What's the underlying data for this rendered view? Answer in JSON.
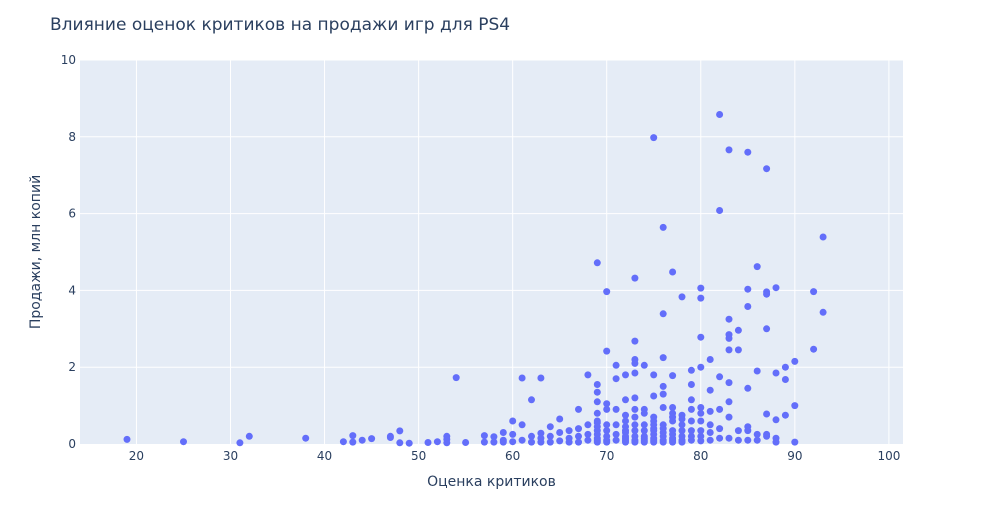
{
  "chart_data": {
    "type": "scatter",
    "title": "Влияние оценок критиков на продажи игр для PS4",
    "xlabel": "Оценка критиков",
    "ylabel": "Продажи, млн копий",
    "xlim": [
      14,
      101.5
    ],
    "ylim": [
      0,
      10
    ],
    "x_ticks": [
      "20",
      "30",
      "40",
      "50",
      "60",
      "70",
      "80",
      "90",
      "100"
    ],
    "y_ticks": [
      "0",
      "2",
      "4",
      "6",
      "8",
      "10"
    ],
    "grid": true,
    "legend": "none",
    "colors": {
      "marker": "#636efa",
      "plot_bg": "#e5ecf6",
      "grid": "#ffffff",
      "text": "#2a3f5f"
    },
    "series": [
      {
        "x": [
          19,
          25,
          31,
          32,
          38,
          42,
          43,
          43,
          44,
          45,
          47,
          47,
          48,
          48,
          49,
          51,
          52,
          53,
          53,
          53,
          54,
          55,
          57,
          57,
          58,
          58,
          59,
          59,
          59,
          60,
          60,
          60,
          61,
          61,
          61,
          62,
          62,
          62,
          63,
          63,
          63,
          63,
          64,
          64,
          64,
          65,
          65,
          65,
          66,
          66,
          66,
          67,
          67,
          67,
          67,
          68,
          68,
          68,
          68,
          69,
          69,
          69,
          69,
          69,
          69,
          69,
          69,
          69,
          69,
          69,
          69,
          69,
          70,
          70,
          70,
          70,
          70,
          70,
          70,
          70,
          70,
          71,
          71,
          71,
          71,
          71,
          71,
          72,
          72,
          72,
          72,
          72,
          72,
          72,
          72,
          72,
          72,
          72,
          73,
          73,
          73,
          73,
          73,
          73,
          73,
          73,
          73,
          73,
          73,
          73,
          73,
          74,
          74,
          74,
          74,
          74,
          74,
          74,
          74,
          74,
          75,
          75,
          75,
          75,
          75,
          75,
          75,
          75,
          75,
          75,
          75,
          75,
          76,
          76,
          76,
          76,
          76,
          76,
          76,
          76,
          76,
          76,
          76,
          76,
          77,
          77,
          77,
          77,
          77,
          77,
          77,
          77,
          77,
          77,
          77,
          78,
          78,
          78,
          78,
          78,
          78,
          78,
          78,
          79,
          79,
          79,
          79,
          79,
          79,
          79,
          79,
          80,
          80,
          80,
          80,
          80,
          80,
          80,
          80,
          80,
          80,
          81,
          81,
          81,
          81,
          81,
          81,
          82,
          82,
          82,
          82,
          82,
          82,
          83,
          83,
          83,
          83,
          83,
          83,
          83,
          83,
          83,
          84,
          84,
          84,
          84,
          85,
          85,
          85,
          85,
          85,
          85,
          85,
          86,
          86,
          86,
          86,
          87,
          87,
          87,
          87,
          87,
          87,
          87,
          88,
          88,
          88,
          88,
          88,
          89,
          89,
          89,
          90,
          90,
          90,
          92,
          92,
          93,
          93
        ],
        "y": [
          0.12,
          0.06,
          0.03,
          0.2,
          0.15,
          0.06,
          0.22,
          0.05,
          0.1,
          0.14,
          0.2,
          0.17,
          0.34,
          0.03,
          0.02,
          0.04,
          0.06,
          0.2,
          0.12,
          0.03,
          1.73,
          0.04,
          0.22,
          0.05,
          0.19,
          0.05,
          0.3,
          0.1,
          0.05,
          0.6,
          0.25,
          0.06,
          1.72,
          0.5,
          0.1,
          1.15,
          0.2,
          0.05,
          1.72,
          0.28,
          0.15,
          0.05,
          0.45,
          0.2,
          0.05,
          0.65,
          0.3,
          0.08,
          0.35,
          0.15,
          0.05,
          0.9,
          0.4,
          0.2,
          0.05,
          1.8,
          0.5,
          0.25,
          0.1,
          4.72,
          1.55,
          1.35,
          1.1,
          0.8,
          0.6,
          0.55,
          0.45,
          0.35,
          0.25,
          0.15,
          0.1,
          0.05,
          3.97,
          2.42,
          1.05,
          0.9,
          0.5,
          0.35,
          0.2,
          0.1,
          0.05,
          2.05,
          1.7,
          0.9,
          0.5,
          0.25,
          0.1,
          1.8,
          1.15,
          0.75,
          0.6,
          0.45,
          0.35,
          0.3,
          0.2,
          0.15,
          0.1,
          0.05,
          4.32,
          2.68,
          2.2,
          2.1,
          1.85,
          1.2,
          0.9,
          0.7,
          0.5,
          0.35,
          0.2,
          0.1,
          0.05,
          2.05,
          0.9,
          0.8,
          0.5,
          0.35,
          0.2,
          0.15,
          0.1,
          0.05,
          7.98,
          1.8,
          1.25,
          0.7,
          0.6,
          0.5,
          0.4,
          0.35,
          0.25,
          0.15,
          0.1,
          0.05,
          5.64,
          3.39,
          2.25,
          1.5,
          1.3,
          0.95,
          0.5,
          0.4,
          0.3,
          0.2,
          0.1,
          0.05,
          4.48,
          1.78,
          0.95,
          0.8,
          0.7,
          0.6,
          0.35,
          0.25,
          0.15,
          0.1,
          0.05,
          3.83,
          0.75,
          0.65,
          0.5,
          0.35,
          0.2,
          0.1,
          0.05,
          1.92,
          1.55,
          1.15,
          0.9,
          0.6,
          0.35,
          0.2,
          0.1,
          4.06,
          3.8,
          2.78,
          2.0,
          0.95,
          0.8,
          0.6,
          0.35,
          0.2,
          0.08,
          2.2,
          1.4,
          0.85,
          0.5,
          0.3,
          0.1,
          8.58,
          6.08,
          1.75,
          0.9,
          0.4,
          0.15,
          7.66,
          3.25,
          2.85,
          2.75,
          2.45,
          1.6,
          1.1,
          0.7,
          0.15,
          2.96,
          2.45,
          0.35,
          0.1,
          7.6,
          4.03,
          3.58,
          1.45,
          0.45,
          0.35,
          0.1,
          4.62,
          1.9,
          0.25,
          0.1,
          7.17,
          3.96,
          3.9,
          3.0,
          0.78,
          0.25,
          0.2,
          4.07,
          1.85,
          0.63,
          0.15,
          0.05,
          2.0,
          1.68,
          0.75,
          2.15,
          1.0,
          0.05,
          3.97,
          2.47,
          5.39,
          3.43
        ]
      }
    ]
  }
}
